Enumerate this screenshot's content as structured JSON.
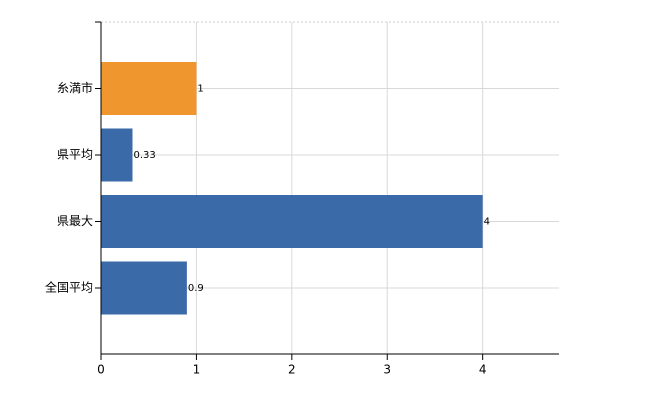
{
  "chart_data": {
    "type": "bar",
    "orientation": "horizontal",
    "categories": [
      "糸満市",
      "県平均",
      "県最大",
      "全国平均"
    ],
    "values": [
      1,
      0.33,
      4,
      0.9
    ],
    "colors": [
      "#f0962e",
      "#3b6aa8",
      "#3b6aa8",
      "#3b6aa8"
    ],
    "xlim": [
      0,
      4.8
    ],
    "xticks": [
      0,
      1,
      2,
      3,
      4
    ],
    "grid": true
  }
}
